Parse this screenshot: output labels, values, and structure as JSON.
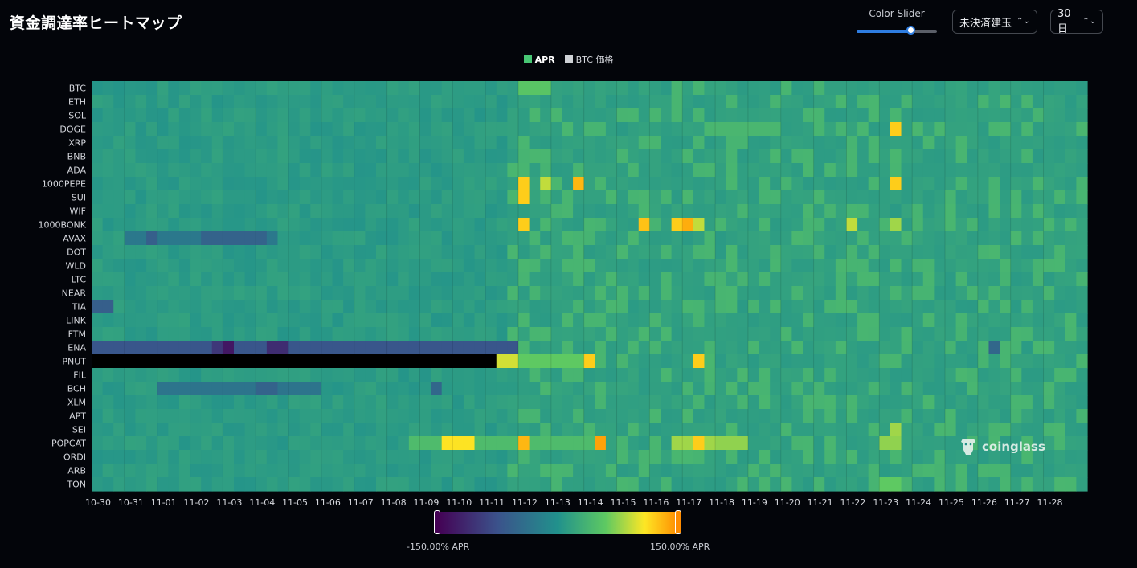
{
  "header": {
    "title": "資金調達率ヒートマップ"
  },
  "controls": {
    "slider_label": "Color Slider",
    "slider_value": 0.67,
    "select_type": "未決済建玉",
    "select_range": "30日"
  },
  "legend": [
    {
      "label": "APR",
      "color": "#48c774"
    },
    {
      "label": "BTC 価格",
      "color": "#cfd2d6"
    }
  ],
  "colorbar": {
    "min_label": "-150.00% APR",
    "max_label": "150.00% APR"
  },
  "watermark": "coinglass",
  "colors": {
    "background": "#03050a",
    "base_cell": "#26a386",
    "none": "#000000"
  },
  "chart_data": {
    "type": "heatmap",
    "title": "資金調達率ヒートマップ",
    "value_unit": "% APR",
    "color_range": [
      -150,
      150
    ],
    "colorscale": "viridis-orange",
    "x_tick_labels": [
      "10-30",
      "10-31",
      "11-01",
      "11-02",
      "11-03",
      "11-04",
      "11-05",
      "11-06",
      "11-07",
      "11-08",
      "11-09",
      "11-10",
      "11-11",
      "11-12",
      "11-13",
      "11-14",
      "11-15",
      "11-16",
      "11-17",
      "11-18",
      "11-19",
      "11-20",
      "11-21",
      "11-22",
      "11-23",
      "11-24",
      "11-25",
      "11-26",
      "11-27",
      "11-28"
    ],
    "periods_per_day": 3,
    "num_periods": 91,
    "rows": [
      "BTC",
      "ETH",
      "SOL",
      "DOGE",
      "XRP",
      "BNB",
      "ADA",
      "1000PEPE",
      "SUI",
      "WIF",
      "1000BONK",
      "AVAX",
      "DOT",
      "WLD",
      "LTC",
      "NEAR",
      "TIA",
      "LINK",
      "FTM",
      "ENA",
      "PNUT",
      "FIL",
      "BCH",
      "XLM",
      "APT",
      "SEI",
      "POPCAT",
      "ORDI",
      "ARB",
      "TON"
    ],
    "baseline_value": 11,
    "highlights": [
      {
        "row": "BTC",
        "from": 39,
        "to": 41,
        "value": 55
      },
      {
        "row": "DOGE",
        "from": 73,
        "to": 73,
        "value": 120
      },
      {
        "row": "DOGE",
        "from": 57,
        "to": 62,
        "value": 40
      },
      {
        "row": "1000PEPE",
        "from": 39,
        "to": 39,
        "value": 120
      },
      {
        "row": "1000PEPE",
        "from": 44,
        "to": 44,
        "value": 130
      },
      {
        "row": "1000PEPE",
        "from": 73,
        "to": 73,
        "value": 120
      },
      {
        "row": "1000PEPE",
        "from": 41,
        "to": 41,
        "value": 90
      },
      {
        "row": "SUI",
        "from": 39,
        "to": 39,
        "value": 120
      },
      {
        "row": "1000BONK",
        "from": 39,
        "to": 39,
        "value": 120
      },
      {
        "row": "1000BONK",
        "from": 50,
        "to": 50,
        "value": 125
      },
      {
        "row": "1000BONK",
        "from": 53,
        "to": 53,
        "value": 120
      },
      {
        "row": "1000BONK",
        "from": 54,
        "to": 54,
        "value": 135
      },
      {
        "row": "1000BONK",
        "from": 55,
        "to": 55,
        "value": 90
      },
      {
        "row": "1000BONK",
        "from": 69,
        "to": 69,
        "value": 90
      },
      {
        "row": "1000BONK",
        "from": 73,
        "to": 73,
        "value": 80
      },
      {
        "row": "AVAX",
        "from": 3,
        "to": 16,
        "value": -30
      },
      {
        "row": "AVAX",
        "from": 5,
        "to": 5,
        "value": -60
      },
      {
        "row": "AVAX",
        "from": 10,
        "to": 15,
        "value": -55
      },
      {
        "row": "TIA",
        "from": 0,
        "to": 1,
        "value": -60
      },
      {
        "row": "ENA",
        "from": 0,
        "to": 38,
        "value": -70
      },
      {
        "row": "ENA",
        "from": 11,
        "to": 12,
        "value": -100
      },
      {
        "row": "ENA",
        "from": 16,
        "to": 17,
        "value": -110
      },
      {
        "row": "ENA",
        "from": 12,
        "to": 12,
        "value": -130
      },
      {
        "row": "ENA",
        "from": 82,
        "to": 82,
        "value": -50
      },
      {
        "row": "PNUT",
        "from": 37,
        "to": 38,
        "value": 95
      },
      {
        "row": "PNUT",
        "from": 39,
        "to": 45,
        "value": 60
      },
      {
        "row": "PNUT",
        "from": 45,
        "to": 45,
        "value": 120
      },
      {
        "row": "PNUT",
        "from": 55,
        "to": 55,
        "value": 120
      },
      {
        "row": "BCH",
        "from": 6,
        "to": 20,
        "value": -35
      },
      {
        "row": "BCH",
        "from": 15,
        "to": 16,
        "value": -55
      },
      {
        "row": "BCH",
        "from": 31,
        "to": 31,
        "value": -50
      },
      {
        "row": "SEI",
        "from": 73,
        "to": 73,
        "value": 80
      },
      {
        "row": "POPCAT",
        "from": 29,
        "to": 45,
        "value": 45
      },
      {
        "row": "POPCAT",
        "from": 32,
        "to": 34,
        "value": 110
      },
      {
        "row": "POPCAT",
        "from": 39,
        "to": 39,
        "value": 130
      },
      {
        "row": "POPCAT",
        "from": 46,
        "to": 46,
        "value": 140
      },
      {
        "row": "POPCAT",
        "from": 53,
        "to": 56,
        "value": 80
      },
      {
        "row": "POPCAT",
        "from": 55,
        "to": 55,
        "value": 120
      },
      {
        "row": "POPCAT",
        "from": 57,
        "to": 59,
        "value": 75
      },
      {
        "row": "POPCAT",
        "from": 72,
        "to": 73,
        "value": 75
      },
      {
        "row": "TON",
        "from": 72,
        "to": 73,
        "value": 60
      }
    ],
    "missing": [
      {
        "row": "PNUT",
        "from": 0,
        "to": 36
      }
    ]
  }
}
